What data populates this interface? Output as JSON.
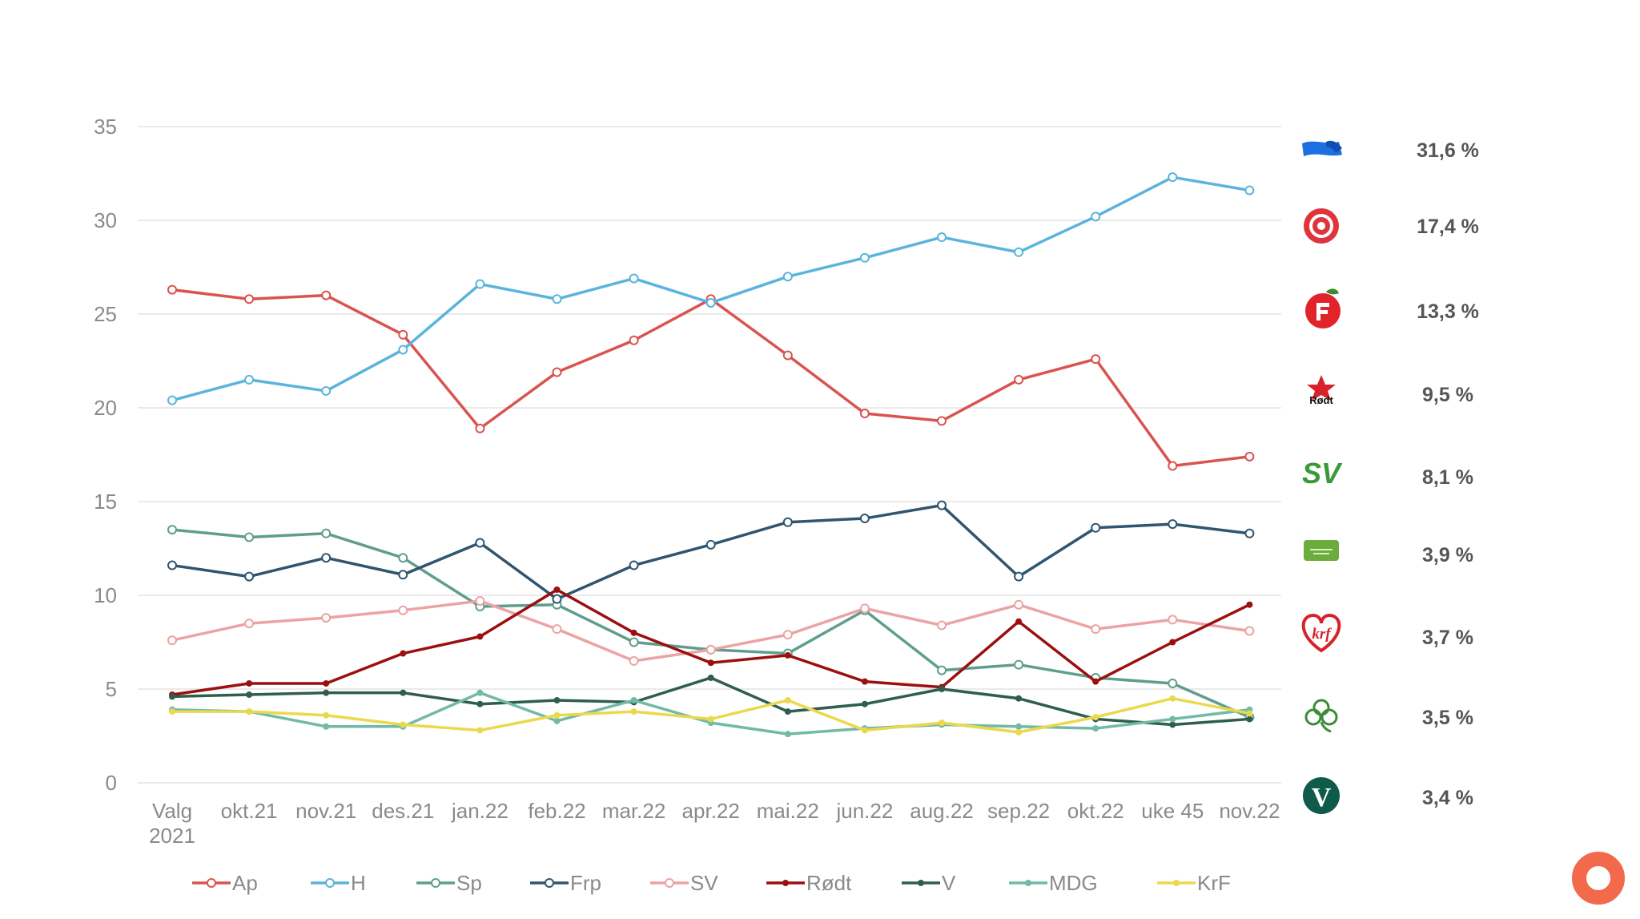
{
  "chart_data": {
    "type": "line",
    "categories": [
      "Valg 2021",
      "okt.21",
      "nov.21",
      "des.21",
      "jan.22",
      "feb.22",
      "mar.22",
      "apr.22",
      "mai.22",
      "jun.22",
      "aug.22",
      "sep.22",
      "okt.22",
      "uke 45",
      "nov.22"
    ],
    "category_lines": [
      [
        "Valg",
        "2021"
      ],
      [
        "okt.21"
      ],
      [
        "nov.21"
      ],
      [
        "des.21"
      ],
      [
        "jan.22"
      ],
      [
        "feb.22"
      ],
      [
        "mar.22"
      ],
      [
        "apr.22"
      ],
      [
        "mai.22"
      ],
      [
        "jun.22"
      ],
      [
        "aug.22"
      ],
      [
        "sep.22"
      ],
      [
        "okt.22"
      ],
      [
        "uke 45"
      ],
      [
        "nov.22"
      ]
    ],
    "ylim": [
      0,
      35
    ],
    "yticks": [
      "0",
      "5",
      "10",
      "15",
      "20",
      "25",
      "30",
      "35"
    ],
    "grid": true,
    "legend_position": "bottom",
    "series": [
      {
        "name": "Ap",
        "color": "#d9534f",
        "marker": "open",
        "values": [
          26.3,
          25.8,
          26.0,
          23.9,
          18.9,
          21.9,
          23.6,
          25.8,
          22.8,
          19.7,
          19.3,
          21.5,
          22.6,
          16.9,
          17.4
        ]
      },
      {
        "name": "H",
        "color": "#5ab4dd",
        "marker": "open",
        "values": [
          20.4,
          21.5,
          20.9,
          23.1,
          26.6,
          25.8,
          26.9,
          25.6,
          27.0,
          28.0,
          29.1,
          28.3,
          30.2,
          32.3,
          31.6
        ]
      },
      {
        "name": "Sp",
        "color": "#5f9e8e",
        "marker": "open",
        "values": [
          13.5,
          13.1,
          13.3,
          12.0,
          9.4,
          9.5,
          7.5,
          7.1,
          6.9,
          9.2,
          6.0,
          6.3,
          5.6,
          5.3,
          3.5
        ]
      },
      {
        "name": "Frp",
        "color": "#2f5570",
        "marker": "open",
        "values": [
          11.6,
          11.0,
          12.0,
          11.1,
          12.8,
          9.8,
          11.6,
          12.7,
          13.9,
          14.1,
          14.8,
          11.0,
          13.6,
          13.8,
          13.3
        ]
      },
      {
        "name": "SV",
        "color": "#eba3a3",
        "marker": "open",
        "values": [
          7.6,
          8.5,
          8.8,
          9.2,
          9.7,
          8.2,
          6.5,
          7.1,
          7.9,
          9.3,
          8.4,
          9.5,
          8.2,
          8.7,
          8.1
        ]
      },
      {
        "name": "Rødt",
        "color": "#9b0f0f",
        "marker": "filled",
        "values": [
          4.7,
          5.3,
          5.3,
          6.9,
          7.8,
          10.3,
          8.0,
          6.4,
          6.8,
          5.4,
          5.1,
          8.6,
          5.4,
          7.5,
          9.5
        ]
      },
      {
        "name": "V",
        "color": "#2e5e4e",
        "marker": "filled",
        "values": [
          4.6,
          4.7,
          4.8,
          4.8,
          4.2,
          4.4,
          4.3,
          5.6,
          3.8,
          4.2,
          5.0,
          4.5,
          3.4,
          3.1,
          3.4
        ]
      },
      {
        "name": "MDG",
        "color": "#72b9a8",
        "marker": "filled",
        "values": [
          3.9,
          3.8,
          3.0,
          3.0,
          4.8,
          3.3,
          4.4,
          3.2,
          2.6,
          2.9,
          3.1,
          3.0,
          2.9,
          3.4,
          3.9
        ]
      },
      {
        "name": "KrF",
        "color": "#ead94c",
        "marker": "filled",
        "values": [
          3.8,
          3.8,
          3.6,
          3.1,
          2.8,
          3.6,
          3.8,
          3.4,
          4.4,
          2.8,
          3.2,
          2.7,
          3.5,
          4.5,
          3.7
        ]
      }
    ],
    "party_results": [
      {
        "logo": "hoyre-logo",
        "value": "31,6 %"
      },
      {
        "logo": "ap-rose-logo",
        "value": "17,4 %"
      },
      {
        "logo": "frp-logo",
        "value": "13,3 %"
      },
      {
        "logo": "rodt-logo",
        "value": "9,5 %",
        "logo_text": "Rødt"
      },
      {
        "logo": "sv-logo",
        "value": "8,1 %",
        "logo_text": "SV"
      },
      {
        "logo": "mdg-logo",
        "value": "3,9 %"
      },
      {
        "logo": "krf-logo",
        "value": "3,7 %",
        "logo_text": "krf"
      },
      {
        "logo": "sp-clover-logo",
        "value": "3,5 %"
      },
      {
        "logo": "venstre-logo",
        "value": "3,4 %",
        "logo_text": "V"
      }
    ]
  },
  "decor": {
    "corner_badge_color": "#f26a4b"
  }
}
